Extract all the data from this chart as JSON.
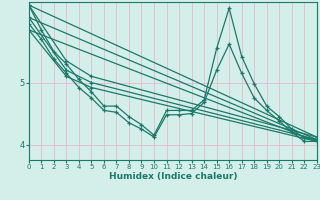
{
  "title": "",
  "xlabel": "Humidex (Indice chaleur)",
  "ylabel": "",
  "bg_color": "#d4eeea",
  "line_color": "#1a7a6a",
  "grid_color": "#e8b0c8",
  "xlim": [
    0,
    23
  ],
  "ylim": [
    3.75,
    6.3
  ],
  "yticks": [
    4,
    5
  ],
  "xticks": [
    0,
    1,
    2,
    3,
    4,
    5,
    6,
    7,
    8,
    9,
    10,
    11,
    12,
    13,
    14,
    15,
    16,
    17,
    18,
    19,
    20,
    21,
    22,
    23
  ],
  "lines": [
    {
      "x": [
        0,
        3,
        5,
        23
      ],
      "y": [
        6.25,
        5.35,
        5.1,
        4.12
      ]
    },
    {
      "x": [
        0,
        3,
        5,
        23
      ],
      "y": [
        6.05,
        5.2,
        5.0,
        4.08
      ]
    },
    {
      "x": [
        0,
        3,
        5,
        23
      ],
      "y": [
        5.85,
        5.1,
        4.92,
        4.05
      ]
    },
    {
      "x": [
        0,
        1,
        2,
        3,
        4,
        5,
        6,
        7,
        8,
        9,
        10,
        11,
        12,
        13,
        14,
        15,
        16,
        17,
        18,
        19,
        20,
        21,
        22,
        23
      ],
      "y": [
        6.25,
        5.85,
        5.5,
        5.3,
        5.05,
        4.85,
        4.62,
        4.62,
        4.45,
        4.32,
        4.15,
        4.55,
        4.55,
        4.55,
        4.72,
        5.55,
        6.2,
        5.42,
        4.98,
        4.62,
        4.45,
        4.25,
        4.1,
        4.08
      ]
    },
    {
      "x": [
        0,
        1,
        2,
        3,
        4,
        5,
        6,
        7,
        8,
        9,
        10,
        11,
        12,
        13,
        14,
        15,
        16,
        17,
        18,
        19,
        20,
        21,
        22,
        23
      ],
      "y": [
        5.95,
        5.7,
        5.38,
        5.15,
        4.92,
        4.75,
        4.55,
        4.52,
        4.35,
        4.25,
        4.12,
        4.48,
        4.48,
        4.5,
        4.68,
        5.2,
        5.62,
        5.15,
        4.75,
        4.55,
        4.38,
        4.2,
        4.05,
        4.05
      ]
    }
  ],
  "straight_lines": [
    {
      "x": [
        0,
        23
      ],
      "y": [
        6.25,
        4.12
      ]
    },
    {
      "x": [
        0,
        23
      ],
      "y": [
        6.05,
        4.08
      ]
    },
    {
      "x": [
        0,
        23
      ],
      "y": [
        5.85,
        4.05
      ]
    }
  ],
  "marker": "+",
  "markersize": 3.5,
  "linewidth": 0.9
}
